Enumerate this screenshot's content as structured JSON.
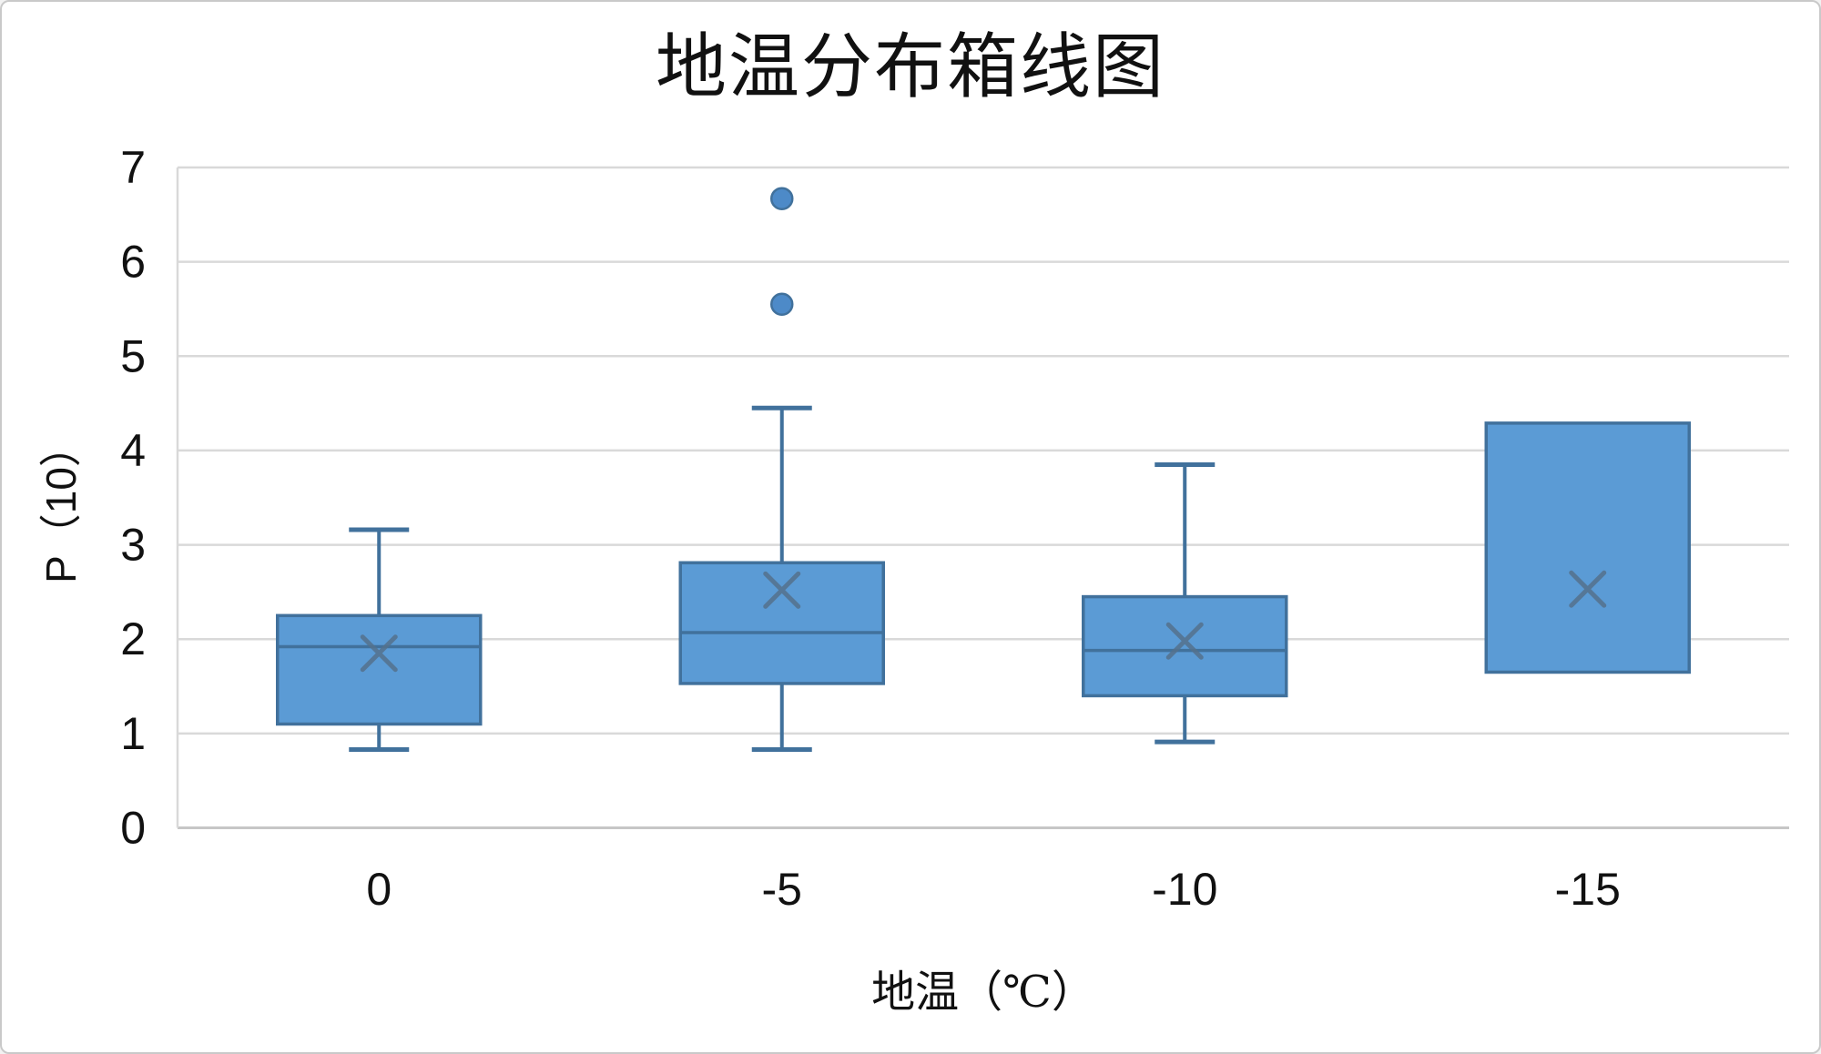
{
  "chart_data": {
    "type": "boxplot",
    "title": "地温分布箱线图",
    "xlabel": "地温（℃）",
    "ylabel": "P（10）",
    "categories": [
      "0",
      "-5",
      "-10",
      "-15"
    ],
    "ylim": [
      0,
      7
    ],
    "yticks": [
      0,
      1,
      2,
      3,
      4,
      5,
      6,
      7
    ],
    "grid": "horizontal-gridlines",
    "legend": "none",
    "series": [
      {
        "category": "0",
        "whisker_low": 0.83,
        "q1": 1.1,
        "median": 1.92,
        "mean": 1.85,
        "q3": 2.25,
        "whisker_high": 3.16,
        "outliers": []
      },
      {
        "category": "-5",
        "whisker_low": 0.83,
        "q1": 1.53,
        "median": 2.07,
        "mean": 2.52,
        "q3": 2.81,
        "whisker_high": 4.45,
        "outliers": [
          5.55,
          6.67
        ]
      },
      {
        "category": "-10",
        "whisker_low": 0.91,
        "q1": 1.4,
        "median": 1.88,
        "mean": 1.98,
        "q3": 2.45,
        "whisker_high": 3.85,
        "outliers": []
      },
      {
        "category": "-15",
        "whisker_low": null,
        "q1": 1.65,
        "median": null,
        "mean": 2.53,
        "q3": 4.29,
        "whisker_high": null,
        "outliers": []
      }
    ],
    "colors": {
      "box_fill": "#5B9BD5",
      "box_border": "#41719C",
      "whisker": "#41719C",
      "median_line": "#41719C",
      "mean_marker": "#55718C",
      "outlier_fill": "#4D8AC8",
      "outlier_border": "#41719C",
      "gridline": "#D9D9D9",
      "axis_line": "#C6C6C6",
      "text": "#111111",
      "background": "#FFFFFF"
    }
  }
}
